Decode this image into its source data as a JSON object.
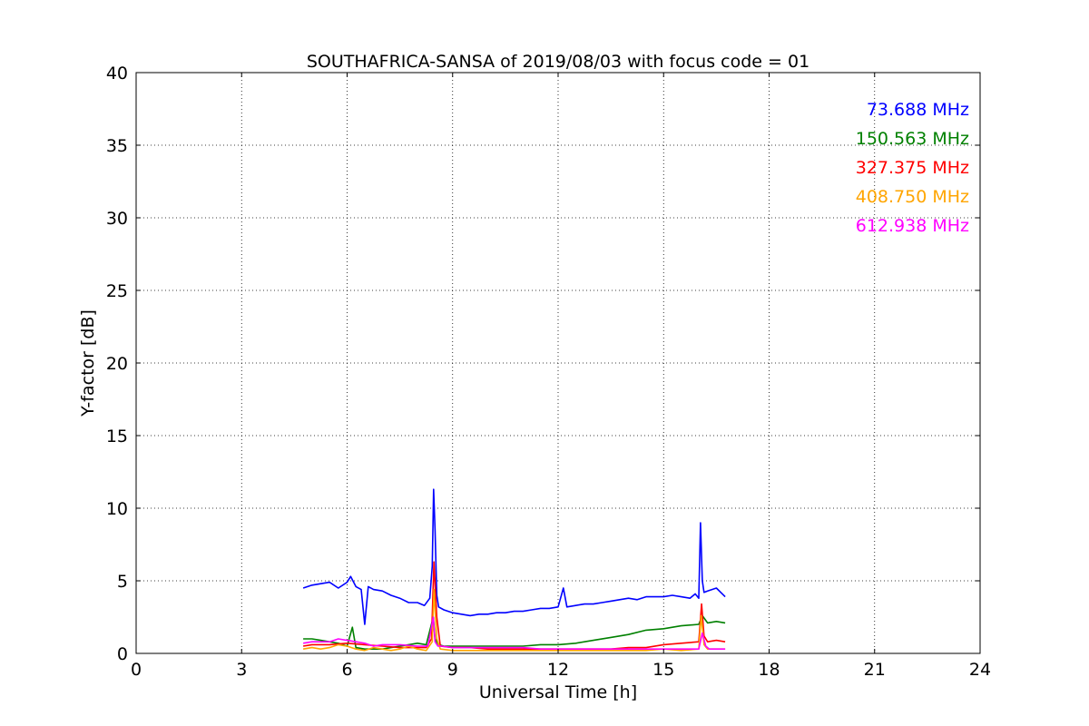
{
  "chart_data": {
    "type": "line",
    "title": "SOUTHAFRICA-SANSA of 2019/08/03 with focus code = 01",
    "xlabel": "Universal Time [h]",
    "ylabel": "Y-factor [dB]",
    "xlim": [
      0,
      24
    ],
    "ylim": [
      0,
      40
    ],
    "xticks": [
      "0",
      "3",
      "6",
      "9",
      "12",
      "15",
      "18",
      "21",
      "24"
    ],
    "yticks": [
      "0",
      "5",
      "10",
      "15",
      "20",
      "25",
      "30",
      "35",
      "40"
    ],
    "grid": true,
    "legend_position": "top-right",
    "series": [
      {
        "name": "73.688 MHz",
        "color": "#0000ff",
        "x": [
          4.75,
          5.0,
          5.25,
          5.5,
          5.75,
          6.0,
          6.1,
          6.25,
          6.4,
          6.5,
          6.6,
          6.75,
          7.0,
          7.25,
          7.5,
          7.75,
          8.0,
          8.2,
          8.35,
          8.42,
          8.46,
          8.5,
          8.55,
          8.6,
          8.75,
          9.0,
          9.25,
          9.5,
          9.75,
          10.0,
          10.25,
          10.5,
          10.75,
          11.0,
          11.25,
          11.5,
          11.75,
          12.0,
          12.15,
          12.25,
          12.5,
          12.75,
          13.0,
          13.25,
          13.5,
          13.75,
          14.0,
          14.25,
          14.5,
          14.75,
          15.0,
          15.25,
          15.5,
          15.75,
          15.9,
          16.0,
          16.05,
          16.1,
          16.15,
          16.25,
          16.5,
          16.75
        ],
        "y": [
          4.5,
          4.7,
          4.8,
          4.9,
          4.5,
          4.9,
          5.3,
          4.6,
          4.4,
          2.0,
          4.6,
          4.4,
          4.3,
          4.0,
          3.8,
          3.5,
          3.5,
          3.3,
          3.8,
          6.0,
          11.3,
          8.5,
          4.0,
          3.2,
          3.0,
          2.8,
          2.7,
          2.6,
          2.7,
          2.7,
          2.8,
          2.8,
          2.9,
          2.9,
          3.0,
          3.1,
          3.1,
          3.2,
          4.5,
          3.2,
          3.3,
          3.4,
          3.4,
          3.5,
          3.6,
          3.7,
          3.8,
          3.7,
          3.9,
          3.9,
          3.9,
          4.0,
          3.9,
          3.8,
          4.1,
          3.8,
          9.0,
          5.0,
          4.2,
          4.3,
          4.5,
          3.9
        ]
      },
      {
        "name": "150.563 MHz",
        "color": "#008000",
        "x": [
          4.75,
          5.0,
          5.25,
          5.5,
          5.75,
          6.0,
          6.15,
          6.25,
          6.5,
          6.75,
          7.0,
          7.25,
          7.5,
          7.75,
          8.0,
          8.25,
          8.45,
          8.5,
          8.6,
          8.75,
          9.0,
          9.5,
          10.0,
          10.5,
          11.0,
          11.5,
          12.0,
          12.5,
          13.0,
          13.5,
          14.0,
          14.5,
          15.0,
          15.5,
          16.0,
          16.1,
          16.25,
          16.5,
          16.75
        ],
        "y": [
          1.0,
          1.0,
          0.9,
          0.8,
          0.7,
          0.5,
          1.8,
          0.4,
          0.3,
          0.3,
          0.3,
          0.4,
          0.5,
          0.6,
          0.7,
          0.6,
          2.5,
          1.0,
          0.6,
          0.5,
          0.5,
          0.5,
          0.5,
          0.5,
          0.5,
          0.6,
          0.6,
          0.7,
          0.9,
          1.1,
          1.3,
          1.6,
          1.7,
          1.9,
          2.0,
          2.6,
          2.1,
          2.2,
          2.1
        ]
      },
      {
        "name": "327.375 MHz",
        "color": "#ff0000",
        "x": [
          4.75,
          5.0,
          5.5,
          6.0,
          6.5,
          7.0,
          7.5,
          8.0,
          8.25,
          8.4,
          8.47,
          8.55,
          8.65,
          9.0,
          9.5,
          10.0,
          10.5,
          11.0,
          11.5,
          12.0,
          12.5,
          13.0,
          13.5,
          14.0,
          14.5,
          15.0,
          15.5,
          16.0,
          16.08,
          16.15,
          16.25,
          16.5,
          16.75
        ],
        "y": [
          0.5,
          0.6,
          0.6,
          0.7,
          0.6,
          0.5,
          0.4,
          0.4,
          0.4,
          1.0,
          6.3,
          2.5,
          0.5,
          0.4,
          0.4,
          0.3,
          0.3,
          0.3,
          0.3,
          0.3,
          0.3,
          0.3,
          0.3,
          0.4,
          0.4,
          0.6,
          0.7,
          0.8,
          3.4,
          1.2,
          0.8,
          0.9,
          0.8
        ]
      },
      {
        "name": "408.750 MHz",
        "color": "#ffa500",
        "x": [
          4.75,
          5.0,
          5.25,
          5.5,
          5.75,
          6.0,
          6.25,
          6.5,
          6.75,
          7.0,
          7.25,
          7.5,
          7.75,
          8.0,
          8.25,
          8.42,
          8.47,
          8.55,
          8.65,
          9.0,
          9.5,
          10.0,
          10.5,
          11.0,
          11.5,
          12.0,
          12.5,
          13.0,
          13.5,
          14.0,
          14.5,
          15.0,
          15.5,
          16.0,
          16.07,
          16.15,
          16.25,
          16.5,
          16.75
        ],
        "y": [
          0.3,
          0.4,
          0.3,
          0.4,
          0.6,
          0.5,
          0.3,
          0.2,
          0.4,
          0.3,
          0.2,
          0.3,
          0.5,
          0.3,
          0.2,
          0.8,
          4.4,
          1.0,
          0.3,
          0.2,
          0.2,
          0.2,
          0.2,
          0.2,
          0.2,
          0.2,
          0.2,
          0.2,
          0.2,
          0.2,
          0.2,
          0.3,
          0.2,
          0.3,
          2.6,
          0.6,
          0.3,
          0.3,
          0.3
        ]
      },
      {
        "name": "612.938 MHz",
        "color": "#ff00ff",
        "x": [
          4.75,
          5.0,
          5.5,
          5.75,
          6.0,
          6.25,
          6.5,
          6.75,
          7.0,
          7.5,
          8.0,
          8.3,
          8.45,
          8.5,
          8.58,
          8.7,
          9.0,
          9.5,
          10.0,
          10.5,
          11.0,
          11.5,
          12.0,
          12.5,
          13.0,
          13.5,
          14.0,
          14.5,
          15.0,
          15.5,
          16.0,
          16.1,
          16.2,
          16.3,
          16.5,
          16.75
        ],
        "y": [
          0.7,
          0.8,
          0.8,
          1.0,
          0.9,
          0.8,
          0.7,
          0.5,
          0.6,
          0.6,
          0.5,
          0.5,
          2.5,
          0.8,
          0.5,
          0.5,
          0.4,
          0.4,
          0.4,
          0.4,
          0.4,
          0.3,
          0.3,
          0.3,
          0.3,
          0.3,
          0.3,
          0.3,
          0.3,
          0.3,
          0.3,
          1.4,
          0.5,
          0.3,
          0.3,
          0.3
        ]
      }
    ]
  }
}
